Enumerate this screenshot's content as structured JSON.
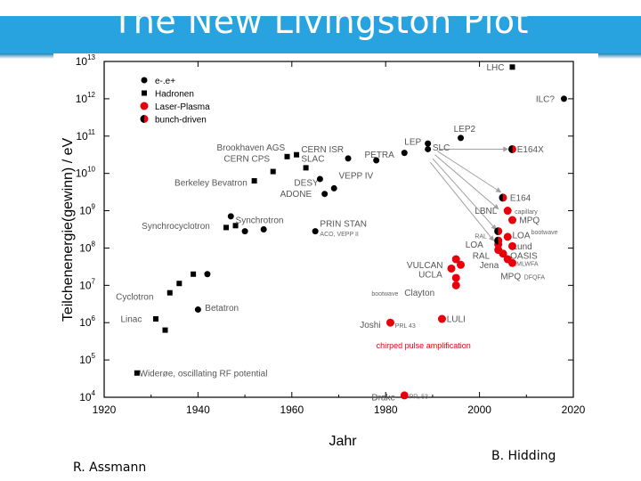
{
  "slide": {
    "title": "The New Livingston Plot",
    "author_left": "R. Assmann",
    "author_right": "B. Hidding",
    "band_color": "#29a3e0"
  },
  "chart_data": {
    "type": "scatter",
    "xlabel": "Jahr",
    "ylabel": "Teilchenenergie(gewinn) / eV",
    "xlim": [
      1920,
      2020
    ],
    "ylim_exp": [
      4,
      13
    ],
    "yscale": "log",
    "x_ticks": [
      "1920",
      "1940",
      "1960",
      "1980",
      "2000",
      "2020"
    ],
    "y_ticks": [
      {
        "exp": 4,
        "base": "10",
        "sup": "4"
      },
      {
        "exp": 5,
        "base": "10",
        "sup": "5"
      },
      {
        "exp": 6,
        "base": "10",
        "sup": "6"
      },
      {
        "exp": 7,
        "base": "10",
        "sup": "7"
      },
      {
        "exp": 8,
        "base": "10",
        "sup": "8"
      },
      {
        "exp": 9,
        "base": "10",
        "sup": "9"
      },
      {
        "exp": 10,
        "base": "10",
        "sup": "10"
      },
      {
        "exp": 11,
        "base": "10",
        "sup": "11"
      },
      {
        "exp": 12,
        "base": "10",
        "sup": "12"
      },
      {
        "exp": 13,
        "base": "10",
        "sup": "13"
      }
    ],
    "legend": [
      {
        "name": "e-.e+",
        "marker": "circle",
        "color": "#000000"
      },
      {
        "name": "Hadronen",
        "marker": "square",
        "color": "#000000"
      },
      {
        "name": "Laser-Plasma",
        "marker": "circle",
        "color": "#e8000b"
      },
      {
        "name": "bunch-driven",
        "marker": "half",
        "color": "#e8000b"
      }
    ],
    "series": [
      {
        "name": "e-.e+",
        "marker": "circle",
        "color": "#000000",
        "points": [
          {
            "x": 1940,
            "y": 6.35
          },
          {
            "x": 1942,
            "y": 7.3
          },
          {
            "x": 1947,
            "y": 8.85
          },
          {
            "x": 1950,
            "y": 8.45
          },
          {
            "x": 1954,
            "y": 8.5
          },
          {
            "x": 1965,
            "y": 8.45
          },
          {
            "x": 1966,
            "y": 9.85
          },
          {
            "x": 1967,
            "y": 9.45
          },
          {
            "x": 1969,
            "y": 9.6
          },
          {
            "x": 1972,
            "y": 10.4
          },
          {
            "x": 1978,
            "y": 10.35
          },
          {
            "x": 1984,
            "y": 10.55
          },
          {
            "x": 1989,
            "y": 10.8
          },
          {
            "x": 1989,
            "y": 10.65
          },
          {
            "x": 1996,
            "y": 10.95
          },
          {
            "x": 2018,
            "y": 12
          }
        ]
      },
      {
        "name": "Hadronen",
        "marker": "square",
        "color": "#000000",
        "points": [
          {
            "x": 1927,
            "y": 4.65
          },
          {
            "x": 1931,
            "y": 6.1
          },
          {
            "x": 1933,
            "y": 5.8
          },
          {
            "x": 1934,
            "y": 6.8
          },
          {
            "x": 1936,
            "y": 7.05
          },
          {
            "x": 1939,
            "y": 7.3
          },
          {
            "x": 1946,
            "y": 8.55
          },
          {
            "x": 1948,
            "y": 8.6
          },
          {
            "x": 1952,
            "y": 9.8
          },
          {
            "x": 1956,
            "y": 10.05
          },
          {
            "x": 1959,
            "y": 10.45
          },
          {
            "x": 1961,
            "y": 10.5
          },
          {
            "x": 1963,
            "y": 10.15
          },
          {
            "x": 2007,
            "y": 12.85
          }
        ]
      },
      {
        "name": "Laser-Plasma",
        "marker": "circle",
        "color": "#e8000b",
        "points": [
          {
            "x": 1981,
            "y": 6
          },
          {
            "x": 1984,
            "y": 4.05
          },
          {
            "x": 1992,
            "y": 6.1
          },
          {
            "x": 1994,
            "y": 7.45
          },
          {
            "x": 1995,
            "y": 7.2
          },
          {
            "x": 1995,
            "y": 7
          },
          {
            "x": 1995,
            "y": 7.7
          },
          {
            "x": 1996,
            "y": 7.55
          },
          {
            "x": 2004,
            "y": 7.95
          },
          {
            "x": 2004,
            "y": 8.1
          },
          {
            "x": 2005,
            "y": 7.85
          },
          {
            "x": 2006,
            "y": 7.7
          },
          {
            "x": 2006,
            "y": 8.3
          },
          {
            "x": 2007,
            "y": 8.05
          },
          {
            "x": 2006,
            "y": 9.0
          },
          {
            "x": 2007,
            "y": 8.75
          },
          {
            "x": 2007,
            "y": 7.6
          }
        ]
      },
      {
        "name": "bunch-driven",
        "marker": "half",
        "color": "#e8000b",
        "points": [
          {
            "x": 2004,
            "y": 8.45
          },
          {
            "x": 2004,
            "y": 8.2
          },
          {
            "x": 2005,
            "y": 9.35
          },
          {
            "x": 2007,
            "y": 10.65
          }
        ]
      }
    ],
    "annotations": [
      {
        "text": "LHC",
        "x": 2001.5,
        "y": 12.85,
        "style": "lbl"
      },
      {
        "text": "ILC?",
        "x": 2012,
        "y": 12,
        "style": "lbl"
      },
      {
        "text": "LEP2",
        "x": 1994.5,
        "y": 11.2,
        "style": "lbl"
      },
      {
        "text": "LEP",
        "x": 1984,
        "y": 10.85,
        "style": "lbl"
      },
      {
        "text": "SLC",
        "x": 1990,
        "y": 10.7,
        "style": "lbl"
      },
      {
        "text": "E164X",
        "x": 2008,
        "y": 10.65,
        "style": "lbl"
      },
      {
        "text": "PETRA",
        "x": 1975.5,
        "y": 10.5,
        "style": "lbl"
      },
      {
        "text": "Brookhaven AGS",
        "x": 1944,
        "y": 10.7,
        "style": "lbl"
      },
      {
        "text": "CERN ISR",
        "x": 1962,
        "y": 10.65,
        "style": "lbl"
      },
      {
        "text": "CERN CPS",
        "x": 1945.5,
        "y": 10.4,
        "style": "lbl"
      },
      {
        "text": "SLAC",
        "x": 1962,
        "y": 10.4,
        "style": "lbl"
      },
      {
        "text": "VEPP IV",
        "x": 1970,
        "y": 9.95,
        "style": "lbl"
      },
      {
        "text": "Berkeley Bevatron",
        "x": 1935,
        "y": 9.75,
        "style": "lbl"
      },
      {
        "text": "DESY",
        "x": 1960.5,
        "y": 9.75,
        "style": "lbl"
      },
      {
        "text": "ADONE",
        "x": 1957.5,
        "y": 9.45,
        "style": "lbl"
      },
      {
        "text": "E164",
        "x": 2006.5,
        "y": 9.35,
        "style": "lbl"
      },
      {
        "text": "Synchrocyclotron",
        "x": 1928,
        "y": 8.6,
        "style": "lbl"
      },
      {
        "text": "PRIN STAN",
        "x": 1966,
        "y": 8.65,
        "style": "lbl"
      },
      {
        "text": "ACO, VEPP II",
        "x": 1966,
        "y": 8.4,
        "style": "lbl-small"
      },
      {
        "text": "LBNL",
        "x": 1999,
        "y": 9.0,
        "style": "lbl"
      },
      {
        "text": "capillary",
        "x": 2007.5,
        "y": 9.0,
        "style": "lbl-small"
      },
      {
        "text": "MPQ",
        "x": 2008.5,
        "y": 8.75,
        "style": "lbl"
      },
      {
        "text": "RAL",
        "x": 1999,
        "y": 8.35,
        "style": "lbl-small"
      },
      {
        "text": "LOA",
        "x": 2007,
        "y": 8.35,
        "style": "lbl"
      },
      {
        "text": "bootwave",
        "x": 2011,
        "y": 8.45,
        "style": "lbl-small"
      },
      {
        "text": "LOA",
        "x": 1997,
        "y": 8.1,
        "style": "lbl"
      },
      {
        "text": "Lund",
        "x": 2007,
        "y": 8.05,
        "style": "lbl"
      },
      {
        "text": "Synchrotron",
        "x": 1948,
        "y": 8.75,
        "style": "lbl"
      },
      {
        "text": "RAL",
        "x": 1998.5,
        "y": 7.8,
        "style": "lbl"
      },
      {
        "text": "LOASIS",
        "x": 2005.5,
        "y": 7.8,
        "style": "lbl"
      },
      {
        "text": "Jena",
        "x": 2000,
        "y": 7.55,
        "style": "lbl"
      },
      {
        "text": "EMLWFA",
        "x": 2007,
        "y": 7.6,
        "style": "lbl-small"
      },
      {
        "text": "VULCAN",
        "x": 1984.5,
        "y": 7.55,
        "style": "lbl"
      },
      {
        "text": "UCLA",
        "x": 1987,
        "y": 7.3,
        "style": "lbl"
      },
      {
        "text": "MPQ",
        "x": 2004.5,
        "y": 7.25,
        "style": "lbl"
      },
      {
        "text": "DFQFA",
        "x": 2009.5,
        "y": 7.25,
        "style": "lbl-small"
      },
      {
        "text": "Cyclotron",
        "x": 1922.5,
        "y": 6.7,
        "style": "lbl"
      },
      {
        "text": "bootwave",
        "x": 1977,
        "y": 6.8,
        "style": "lbl-small"
      },
      {
        "text": "Clayton",
        "x": 1984,
        "y": 6.8,
        "style": "lbl"
      },
      {
        "text": "Betatron",
        "x": 1941.5,
        "y": 6.4,
        "style": "lbl"
      },
      {
        "text": "Linac",
        "x": 1923.5,
        "y": 6.1,
        "style": "lbl"
      },
      {
        "text": "Joshi",
        "x": 1974.5,
        "y": 5.95,
        "style": "lbl"
      },
      {
        "text": "PRL 43",
        "x": 1982,
        "y": 5.95,
        "style": "lbl-small"
      },
      {
        "text": "LULI",
        "x": 1993,
        "y": 6.1,
        "style": "lbl"
      },
      {
        "text": "chirped pulse amplification",
        "x": 1978,
        "y": 5.4,
        "style": "lbl-red"
      },
      {
        "text": "Widerøe, oscillating RF potential",
        "x": 1927.5,
        "y": 4.65,
        "style": "lbl"
      },
      {
        "text": "Drake",
        "x": 1977,
        "y": 4.0,
        "style": "lbl"
      },
      {
        "text": "PR, 53",
        "x": 1985,
        "y": 4.05,
        "style": "lbl-small"
      }
    ],
    "arrows": [
      {
        "from": [
          1991,
          10.6
        ],
        "to": [
          2004.5,
          9.5
        ]
      },
      {
        "from": [
          1990.5,
          10.5
        ],
        "to": [
          2004,
          9.05
        ]
      },
      {
        "from": [
          1990,
          10.4
        ],
        "to": [
          2003.5,
          8.5
        ]
      },
      {
        "from": [
          1989.5,
          10.3
        ],
        "to": [
          2003,
          8.2
        ]
      },
      {
        "from": [
          1991.5,
          10.65
        ],
        "to": [
          2006,
          10.65
        ]
      }
    ],
    "grid": false,
    "legend_position": "top-left"
  }
}
